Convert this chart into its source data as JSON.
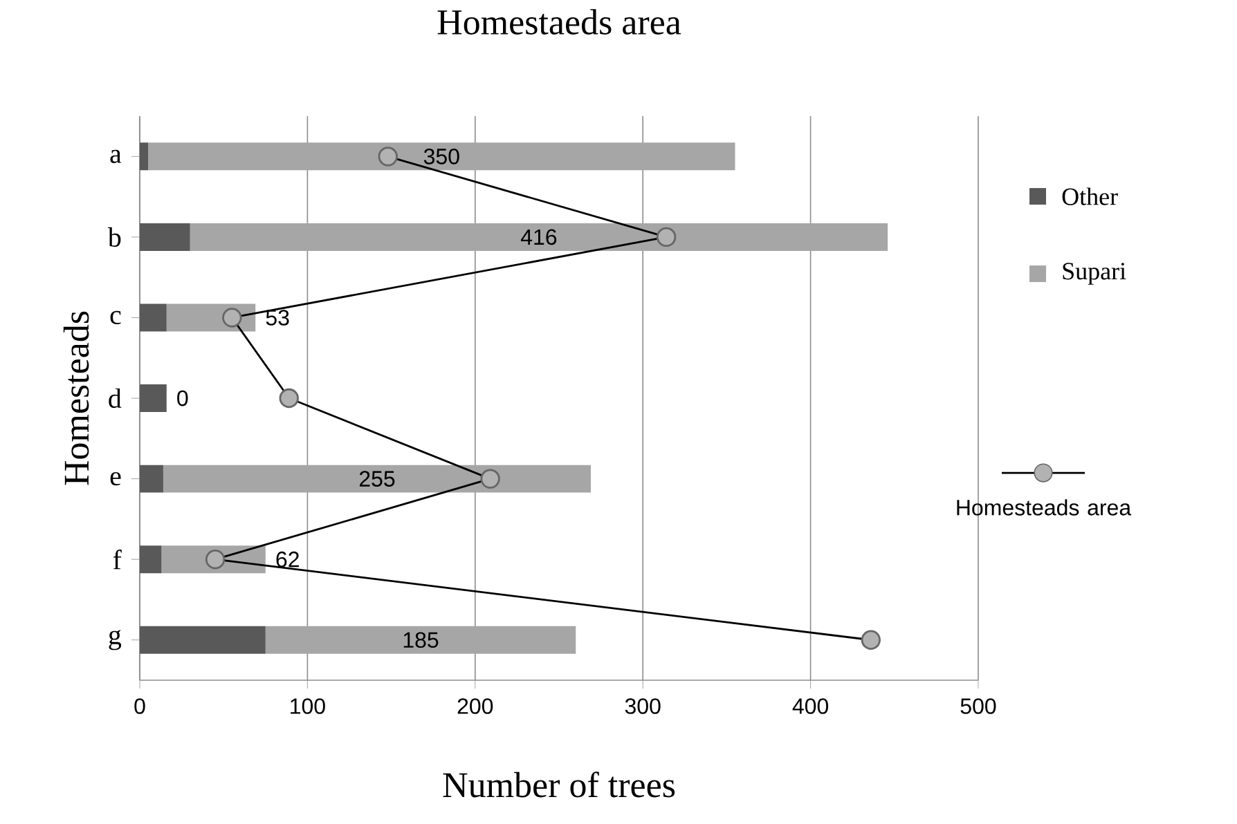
{
  "chart_data": {
    "type": "bar",
    "orientation": "horizontal",
    "stacked": true,
    "title": "Homestaeds area",
    "xlabel": "Number of trees",
    "ylabel": "Homesteads",
    "categories": [
      "a",
      "b",
      "c",
      "d",
      "e",
      "f",
      "g"
    ],
    "series": [
      {
        "name": "Other",
        "color": "#595959",
        "values": [
          5,
          30,
          16,
          16,
          14,
          13,
          75
        ]
      },
      {
        "name": "Supari",
        "color": "#a6a6a6",
        "values": [
          350,
          416,
          53,
          0,
          255,
          62,
          185
        ],
        "value_labels": [
          "350",
          "416",
          "53",
          "0",
          "255",
          "62",
          "185"
        ]
      },
      {
        "name": "Homesteads area",
        "type": "line",
        "color": "#000000",
        "marker": "circle",
        "values": [
          148,
          314,
          55,
          89,
          209,
          45,
          436
        ]
      }
    ],
    "xlim": [
      0,
      500
    ],
    "xticks": [
      0,
      100,
      200,
      300,
      400,
      500
    ],
    "grid": "x",
    "legend": "right"
  }
}
